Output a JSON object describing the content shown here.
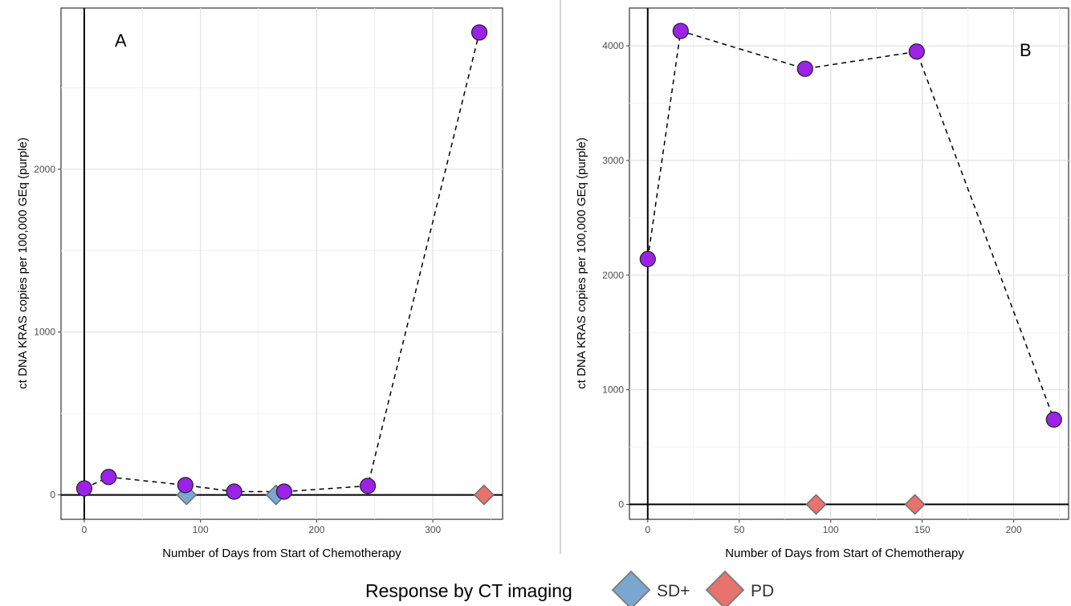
{
  "chart_data": [
    {
      "type": "scatter",
      "panel_label": "A",
      "xlabel": "Number of Days from Start of Chemotherapy",
      "ylabel": "ct DNA KRAS copies per 100,000 GEq (purple)",
      "xlim": [
        -20,
        360
      ],
      "ylim": [
        -150,
        2990
      ],
      "xticks": [
        0,
        100,
        200,
        300
      ],
      "yticks": [
        0,
        1000,
        2000
      ],
      "grid": true,
      "ctdna": {
        "color": "#9b22e6",
        "line_style": "dashed",
        "x": [
          0,
          21,
          87,
          129,
          172,
          244,
          340
        ],
        "y": [
          40,
          110,
          60,
          20,
          20,
          55,
          2840
        ]
      },
      "response": [
        {
          "label": "SD+",
          "x": [
            88,
            165
          ],
          "y": [
            0,
            0
          ],
          "color": "#7aa7cf"
        },
        {
          "label": "PD",
          "x": [
            344
          ],
          "y": [
            0
          ],
          "color": "#e8736c"
        }
      ]
    },
    {
      "type": "scatter",
      "panel_label": "B",
      "xlabel": "Number of Days from Start of Chemotherapy",
      "ylabel": "ct DNA KRAS copies per 100,000 GEq (purple)",
      "xlim": [
        -10,
        230
      ],
      "ylim": [
        -130,
        4330
      ],
      "xticks": [
        0,
        50,
        100,
        150,
        200
      ],
      "yticks": [
        0,
        1000,
        2000,
        3000,
        4000
      ],
      "grid": true,
      "ctdna": {
        "color": "#9b22e6",
        "line_style": "dashed",
        "x": [
          0,
          18,
          86,
          147,
          222
        ],
        "y": [
          2140,
          4130,
          3800,
          3950,
          740
        ]
      },
      "response": [
        {
          "label": "PD",
          "x": [
            92,
            146
          ],
          "y": [
            0,
            0
          ],
          "color": "#e8736c"
        }
      ]
    }
  ],
  "legend": {
    "title": "Response by CT imaging",
    "items": [
      {
        "label": "SD+",
        "color": "#7aa7cf"
      },
      {
        "label": "PD",
        "color": "#e8736c"
      }
    ]
  }
}
